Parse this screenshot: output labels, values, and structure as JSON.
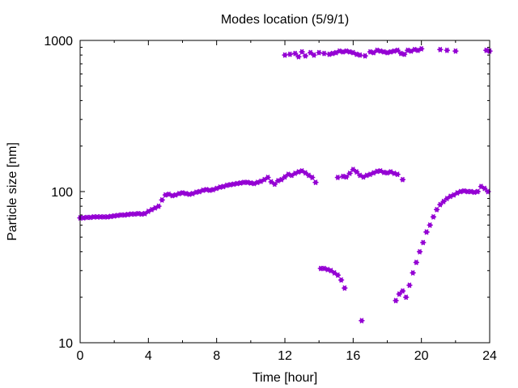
{
  "chart_data": {
    "type": "scatter",
    "title": "Modes location (5/9/1)",
    "xlabel": "Time [hour]",
    "ylabel": "Particle size [nm]",
    "xlim": [
      0,
      24
    ],
    "ylim": [
      10,
      1000
    ],
    "yscale": "log",
    "xticks": [
      0,
      4,
      8,
      12,
      16,
      20,
      24
    ],
    "xtick_labels": [
      "0",
      "4",
      "8",
      "12",
      "16",
      "20",
      "24"
    ],
    "yticks": [
      10,
      100,
      1000
    ],
    "ytick_labels": [
      "10",
      "100",
      "1000"
    ],
    "grid": false,
    "legend": "none",
    "marker_color": "#9400d3",
    "series": [
      {
        "x": [
          0.0,
          0.2,
          0.4,
          0.6,
          0.8,
          1.0,
          1.2,
          1.4,
          1.6,
          1.8,
          2.0,
          2.2,
          2.4,
          2.6,
          2.8,
          3.0,
          3.2,
          3.4,
          3.6,
          3.8,
          4.0,
          4.2,
          4.4,
          4.6,
          4.8,
          5.0,
          5.2,
          5.4,
          5.6,
          5.8,
          6.0,
          6.2,
          6.4,
          6.6,
          6.8,
          7.0,
          7.2,
          7.4,
          7.6,
          7.8,
          8.0,
          8.2,
          8.4,
          8.6,
          8.8,
          9.0,
          9.2,
          9.4,
          9.6,
          9.8,
          10.0,
          10.2,
          10.4,
          10.6,
          10.8,
          11.0,
          11.2,
          11.4,
          11.6,
          11.8,
          12.0,
          12.2,
          12.4,
          12.6,
          12.8,
          13.0,
          13.2,
          13.4,
          13.6,
          13.8,
          15.1,
          15.4,
          15.6,
          15.8,
          16.0,
          16.2,
          16.4,
          16.6,
          16.8,
          17.0,
          17.2,
          17.4,
          17.6,
          17.8,
          18.0,
          18.2,
          18.4,
          18.6,
          18.9,
          20.3,
          20.5,
          20.7,
          20.9,
          21.1,
          21.3,
          21.5,
          21.7,
          21.9,
          22.1,
          22.3,
          22.5,
          22.7,
          22.9,
          23.1,
          23.3,
          23.5,
          23.7,
          23.9,
          14.1,
          14.3,
          14.5,
          14.7,
          14.9,
          15.1,
          15.3,
          15.5,
          16.5,
          18.5,
          18.7,
          18.9,
          19.1,
          19.3,
          19.5,
          19.7,
          19.9,
          20.1,
          20.3
        ],
        "y": [
          67,
          67,
          67.5,
          67.5,
          68,
          68,
          68,
          68,
          68,
          68.5,
          69,
          69.5,
          70,
          70,
          70.5,
          71,
          71,
          71.5,
          71,
          71.5,
          74,
          76,
          78,
          80,
          88,
          95,
          96,
          94,
          95,
          97,
          98,
          97,
          96,
          97,
          99,
          100,
          102,
          103,
          102,
          103,
          105,
          107,
          108,
          110,
          111,
          112,
          113,
          114,
          115,
          115,
          114,
          113,
          115,
          117,
          120,
          124,
          116,
          112,
          118,
          120,
          125,
          130,
          128,
          132,
          135,
          137,
          133,
          128,
          124,
          115,
          124,
          126,
          125,
          132,
          140,
          135,
          128,
          125,
          128,
          130,
          133,
          136,
          137,
          134,
          133,
          135,
          132,
          130,
          120,
          54,
          60,
          68,
          76,
          82,
          86,
          90,
          93,
          95,
          98,
          100,
          101,
          100,
          100,
          99,
          100,
          108,
          105,
          100,
          31,
          31,
          30.5,
          30,
          29,
          28,
          26,
          23,
          14,
          19,
          21,
          22,
          20,
          24,
          29,
          34,
          40,
          46,
          54
        ]
      },
      {
        "x": [
          12.0,
          12.3,
          12.6,
          12.8,
          13.0,
          13.2,
          13.5,
          13.7,
          14.0,
          14.3,
          14.6,
          14.8,
          15.0,
          15.2,
          15.4,
          15.6,
          15.8,
          16.0,
          16.2,
          16.4,
          16.7,
          17.0,
          17.2,
          17.4,
          17.6,
          17.8,
          18.0,
          18.2,
          18.4,
          18.6,
          18.8,
          19.0,
          19.2,
          19.4,
          19.6,
          19.8,
          20.0,
          21.1,
          21.5,
          22.0,
          23.8,
          24.0
        ],
        "y": [
          800,
          810,
          820,
          780,
          840,
          790,
          830,
          800,
          830,
          820,
          810,
          820,
          830,
          850,
          840,
          850,
          840,
          830,
          810,
          800,
          790,
          840,
          830,
          860,
          850,
          840,
          830,
          840,
          850,
          860,
          820,
          810,
          860,
          850,
          870,
          860,
          880,
          870,
          860,
          850,
          860,
          850
        ]
      }
    ]
  }
}
